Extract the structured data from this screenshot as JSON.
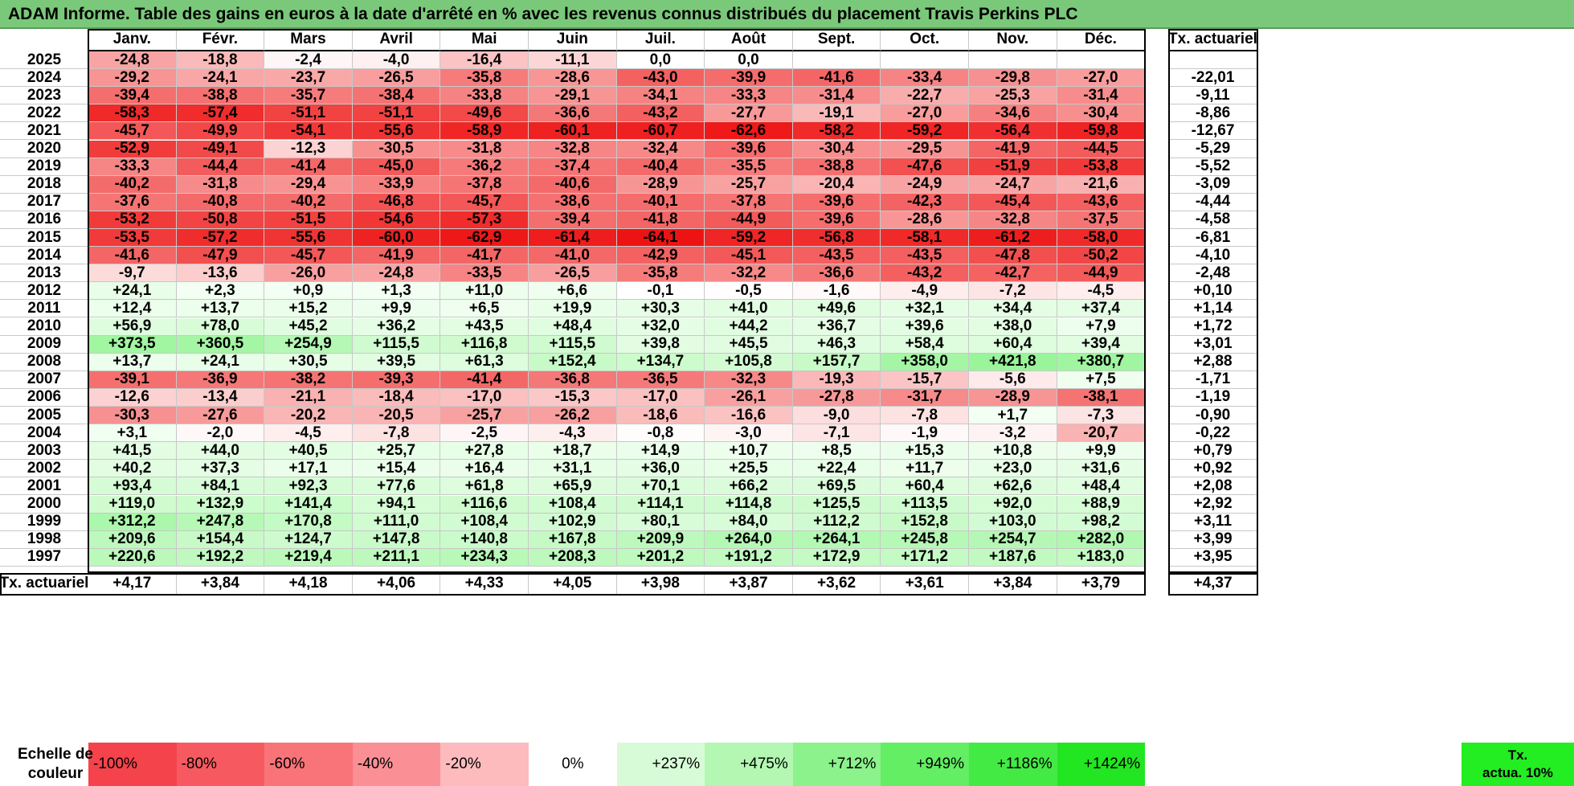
{
  "title": "ADAM Informe. Table des gains en euros à la date d'arrêté en % avec les revenus connus distribués du placement Travis Perkins PLC",
  "chart_data": {
    "type": "heatmap",
    "title": "ADAM Informe. Table des gains en euros à la date d'arrêté en % avec les revenus connus distribués du placement Travis Perkins PLC",
    "columns": [
      "Janv.",
      "Févr.",
      "Mars",
      "Avril",
      "Mai",
      "Juin",
      "Juil.",
      "Août",
      "Sept.",
      "Oct.",
      "Nov.",
      "Déc."
    ],
    "rate_header": "Tx. actuariel",
    "rows": [
      {
        "year": "2025",
        "values": [
          "-24,8",
          "-18,8",
          "-2,4",
          "-4,0",
          "-16,4",
          "-11,1",
          "0,0",
          "0,0",
          "",
          "",
          "",
          ""
        ],
        "rate": ""
      },
      {
        "year": "2024",
        "values": [
          "-29,2",
          "-24,1",
          "-23,7",
          "-26,5",
          "-35,8",
          "-28,6",
          "-43,0",
          "-39,9",
          "-41,6",
          "-33,4",
          "-29,8",
          "-27,0"
        ],
        "rate": "-22,01"
      },
      {
        "year": "2023",
        "values": [
          "-39,4",
          "-38,8",
          "-35,7",
          "-38,4",
          "-33,8",
          "-29,1",
          "-34,1",
          "-33,3",
          "-31,4",
          "-22,7",
          "-25,3",
          "-31,4"
        ],
        "rate": "-9,11"
      },
      {
        "year": "2022",
        "values": [
          "-58,3",
          "-57,4",
          "-51,1",
          "-51,1",
          "-49,6",
          "-36,6",
          "-43,2",
          "-27,7",
          "-19,1",
          "-27,0",
          "-34,6",
          "-30,4"
        ],
        "rate": "-8,86"
      },
      {
        "year": "2021",
        "values": [
          "-45,7",
          "-49,9",
          "-54,1",
          "-55,6",
          "-58,9",
          "-60,1",
          "-60,7",
          "-62,6",
          "-58,2",
          "-59,2",
          "-56,4",
          "-59,8"
        ],
        "rate": "-12,67"
      },
      {
        "year": "2020",
        "values": [
          "-52,9",
          "-49,1",
          "-12,3",
          "-30,5",
          "-31,8",
          "-32,8",
          "-32,4",
          "-39,6",
          "-30,4",
          "-29,5",
          "-41,9",
          "-44,5"
        ],
        "rate": "-5,29"
      },
      {
        "year": "2019",
        "values": [
          "-33,3",
          "-44,4",
          "-41,4",
          "-45,0",
          "-36,2",
          "-37,4",
          "-40,4",
          "-35,5",
          "-38,8",
          "-47,6",
          "-51,9",
          "-53,8"
        ],
        "rate": "-5,52"
      },
      {
        "year": "2018",
        "values": [
          "-40,2",
          "-31,8",
          "-29,4",
          "-33,9",
          "-37,8",
          "-40,6",
          "-28,9",
          "-25,7",
          "-20,4",
          "-24,9",
          "-24,7",
          "-21,6"
        ],
        "rate": "-3,09"
      },
      {
        "year": "2017",
        "values": [
          "-37,6",
          "-40,8",
          "-40,2",
          "-46,8",
          "-45,7",
          "-38,6",
          "-40,1",
          "-37,8",
          "-39,6",
          "-42,3",
          "-45,4",
          "-43,6"
        ],
        "rate": "-4,44"
      },
      {
        "year": "2016",
        "values": [
          "-53,2",
          "-50,8",
          "-51,5",
          "-54,6",
          "-57,3",
          "-39,4",
          "-41,8",
          "-44,9",
          "-39,6",
          "-28,6",
          "-32,8",
          "-37,5"
        ],
        "rate": "-4,58"
      },
      {
        "year": "2015",
        "values": [
          "-53,5",
          "-57,2",
          "-55,6",
          "-60,0",
          "-62,9",
          "-61,4",
          "-64,1",
          "-59,2",
          "-56,8",
          "-58,1",
          "-61,2",
          "-58,0"
        ],
        "rate": "-6,81"
      },
      {
        "year": "2014",
        "values": [
          "-41,6",
          "-47,9",
          "-45,7",
          "-41,9",
          "-41,7",
          "-41,0",
          "-42,9",
          "-45,1",
          "-43,5",
          "-43,5",
          "-47,8",
          "-50,2"
        ],
        "rate": "-4,10"
      },
      {
        "year": "2013",
        "values": [
          "-9,7",
          "-13,6",
          "-26,0",
          "-24,8",
          "-33,5",
          "-26,5",
          "-35,8",
          "-32,2",
          "-36,6",
          "-43,2",
          "-42,7",
          "-44,9"
        ],
        "rate": "-2,48"
      },
      {
        "year": "2012",
        "values": [
          "+24,1",
          "+2,3",
          "+0,9",
          "+1,3",
          "+11,0",
          "+6,6",
          "-0,1",
          "-0,5",
          "-1,6",
          "-4,9",
          "-7,2",
          "-4,5"
        ],
        "rate": "+0,10"
      },
      {
        "year": "2011",
        "values": [
          "+12,4",
          "+13,7",
          "+15,2",
          "+9,9",
          "+6,5",
          "+19,9",
          "+30,3",
          "+41,0",
          "+49,6",
          "+32,1",
          "+34,4",
          "+37,4"
        ],
        "rate": "+1,14"
      },
      {
        "year": "2010",
        "values": [
          "+56,9",
          "+78,0",
          "+45,2",
          "+36,2",
          "+43,5",
          "+48,4",
          "+32,0",
          "+44,2",
          "+36,7",
          "+39,6",
          "+38,0",
          "+7,9"
        ],
        "rate": "+1,72"
      },
      {
        "year": "2009",
        "values": [
          "+373,5",
          "+360,5",
          "+254,9",
          "+115,5",
          "+116,8",
          "+115,5",
          "+39,8",
          "+45,5",
          "+46,3",
          "+58,4",
          "+60,4",
          "+39,4"
        ],
        "rate": "+3,01"
      },
      {
        "year": "2008",
        "values": [
          "+13,7",
          "+24,1",
          "+30,5",
          "+39,5",
          "+61,3",
          "+152,4",
          "+134,7",
          "+105,8",
          "+157,7",
          "+358,0",
          "+421,8",
          "+380,7"
        ],
        "rate": "+2,88"
      },
      {
        "year": "2007",
        "values": [
          "-39,1",
          "-36,9",
          "-38,2",
          "-39,3",
          "-41,4",
          "-36,8",
          "-36,5",
          "-32,3",
          "-19,3",
          "-15,7",
          "-5,6",
          "+7,5"
        ],
        "rate": "-1,71"
      },
      {
        "year": "2006",
        "values": [
          "-12,6",
          "-13,4",
          "-21,1",
          "-18,4",
          "-17,0",
          "-15,3",
          "-17,0",
          "-26,1",
          "-27,8",
          "-31,7",
          "-28,9",
          "-38,1"
        ],
        "rate": "-1,19"
      },
      {
        "year": "2005",
        "values": [
          "-30,3",
          "-27,6",
          "-20,2",
          "-20,5",
          "-25,7",
          "-26,2",
          "-18,6",
          "-16,6",
          "-9,0",
          "-7,8",
          "+1,7",
          "-7,3"
        ],
        "rate": "-0,90"
      },
      {
        "year": "2004",
        "values": [
          "+3,1",
          "-2,0",
          "-4,5",
          "-7,8",
          "-2,5",
          "-4,3",
          "-0,8",
          "-3,0",
          "-7,1",
          "-1,9",
          "-3,2",
          "-20,7"
        ],
        "rate": "-0,22"
      },
      {
        "year": "2003",
        "values": [
          "+41,5",
          "+44,0",
          "+40,5",
          "+25,7",
          "+27,8",
          "+18,7",
          "+14,9",
          "+10,7",
          "+8,5",
          "+15,3",
          "+10,8",
          "+9,9"
        ],
        "rate": "+0,79"
      },
      {
        "year": "2002",
        "values": [
          "+40,2",
          "+37,3",
          "+17,1",
          "+15,4",
          "+16,4",
          "+31,1",
          "+36,0",
          "+25,5",
          "+22,4",
          "+11,7",
          "+23,0",
          "+31,6"
        ],
        "rate": "+0,92"
      },
      {
        "year": "2001",
        "values": [
          "+93,4",
          "+84,1",
          "+92,3",
          "+77,6",
          "+61,8",
          "+65,9",
          "+70,1",
          "+66,2",
          "+69,5",
          "+60,4",
          "+62,6",
          "+48,4"
        ],
        "rate": "+2,08"
      },
      {
        "year": "2000",
        "values": [
          "+119,0",
          "+132,9",
          "+141,4",
          "+94,1",
          "+116,6",
          "+108,4",
          "+114,1",
          "+114,8",
          "+125,5",
          "+113,5",
          "+92,0",
          "+88,9"
        ],
        "rate": "+2,92"
      },
      {
        "year": "1999",
        "values": [
          "+312,2",
          "+247,8",
          "+170,8",
          "+111,0",
          "+108,4",
          "+102,9",
          "+80,1",
          "+84,0",
          "+112,2",
          "+152,8",
          "+103,0",
          "+98,2"
        ],
        "rate": "+3,11"
      },
      {
        "year": "1998",
        "values": [
          "+209,6",
          "+154,4",
          "+124,7",
          "+147,8",
          "+140,8",
          "+167,8",
          "+209,9",
          "+264,0",
          "+264,1",
          "+245,8",
          "+254,7",
          "+282,0"
        ],
        "rate": "+3,99"
      },
      {
        "year": "1997",
        "values": [
          "+220,6",
          "+192,2",
          "+219,4",
          "+211,1",
          "+234,3",
          "+208,3",
          "+201,2",
          "+191,2",
          "+172,9",
          "+171,2",
          "+187,6",
          "+183,0"
        ],
        "rate": "+3,95"
      }
    ],
    "footer": {
      "label": "Tx. actuariel",
      "values": [
        "+4,17",
        "+3,84",
        "+4,18",
        "+4,06",
        "+4,33",
        "+4,05",
        "+3,98",
        "+3,87",
        "+3,62",
        "+3,61",
        "+3,84",
        "+3,79"
      ],
      "rate": "+4,37"
    },
    "scale": {
      "label_line1": "Echelle de",
      "label_line2": "couleur",
      "steps": [
        {
          "label": "-100%",
          "color": "#f4434b"
        },
        {
          "label": "-80%",
          "color": "#f65a60"
        },
        {
          "label": "-60%",
          "color": "#f87478"
        },
        {
          "label": "-40%",
          "color": "#fa9095"
        },
        {
          "label": "-20%",
          "color": "#fdbbbd"
        },
        {
          "label": "0%",
          "color": "#ffffff"
        },
        {
          "label": "+237%",
          "color": "#d7fbd7"
        },
        {
          "label": "+475%",
          "color": "#b3f7b3"
        },
        {
          "label": "+712%",
          "color": "#8cf28c"
        },
        {
          "label": "+949%",
          "color": "#63ee63"
        },
        {
          "label": "+1186%",
          "color": "#44ea44"
        },
        {
          "label": "+1424%",
          "color": "#22e622"
        }
      ],
      "rate_label_line1": "Tx.",
      "rate_label_line2": "actua. 10%",
      "rate_color": "#22ee22"
    },
    "colors": {
      "negative_max": "#ef1010",
      "positive_max": "#22e622",
      "neutral": "#ffffff",
      "title_bar": "#7ac97a"
    }
  }
}
